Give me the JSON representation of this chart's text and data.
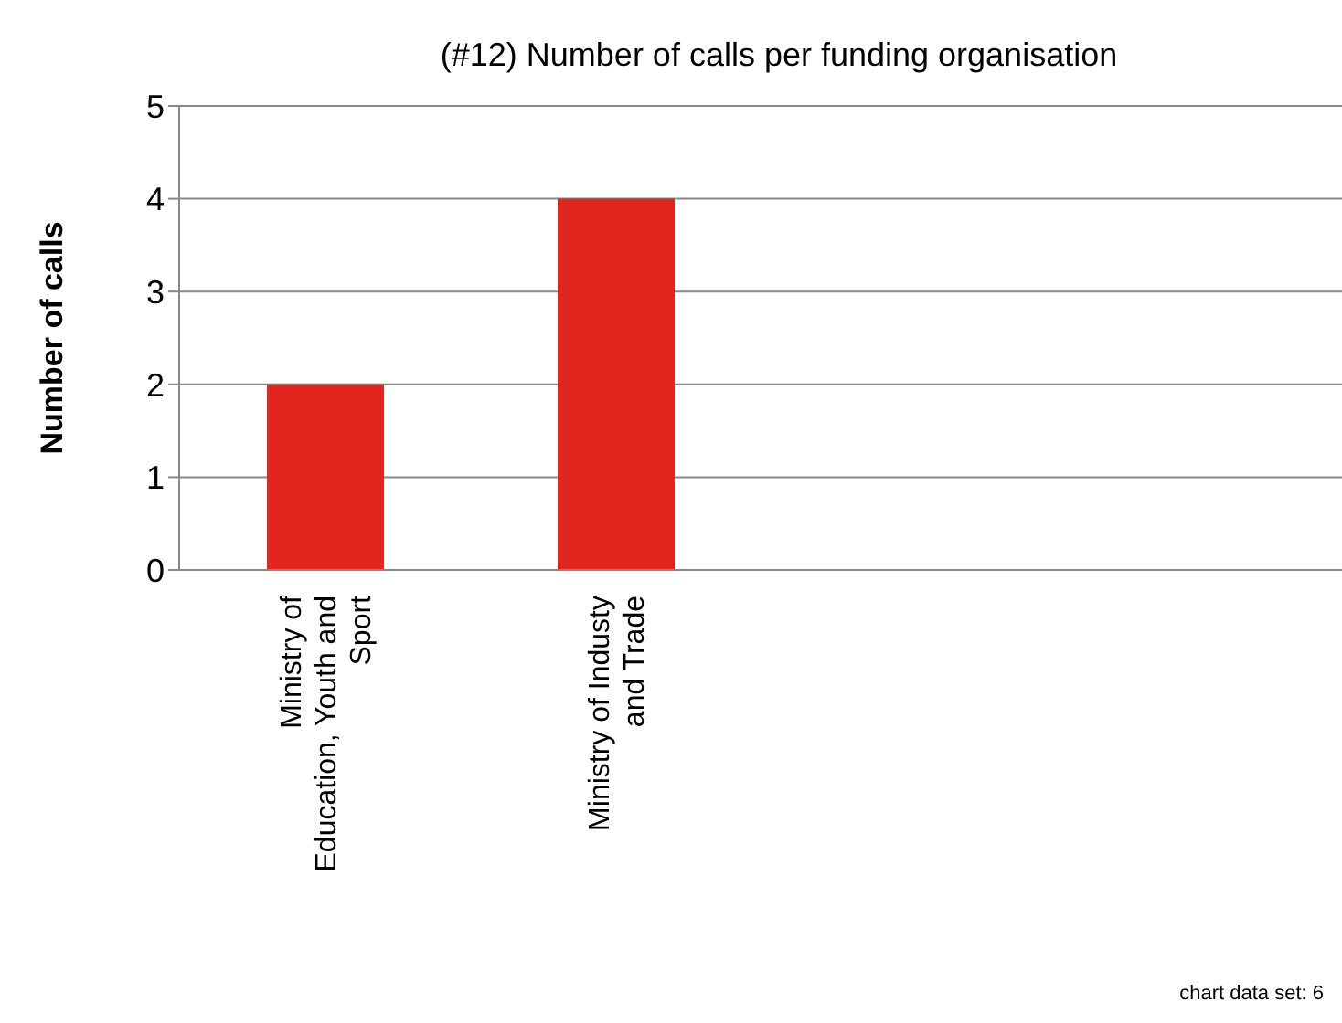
{
  "chart_data": {
    "type": "bar",
    "title": "(#12) Number of calls per funding organisation",
    "ylabel": "Number of calls",
    "categories": [
      "Ministry of Education, Youth and Sport",
      "Ministry of Industy and Trade",
      null,
      null
    ],
    "values": [
      2,
      4,
      null,
      null
    ],
    "color": "#e0261f",
    "ylim": [
      0,
      5
    ],
    "yticks": [
      0,
      1,
      2,
      3,
      4,
      5
    ],
    "grid": "y",
    "legend": false,
    "annotations": [
      "chart data set: 6"
    ]
  }
}
